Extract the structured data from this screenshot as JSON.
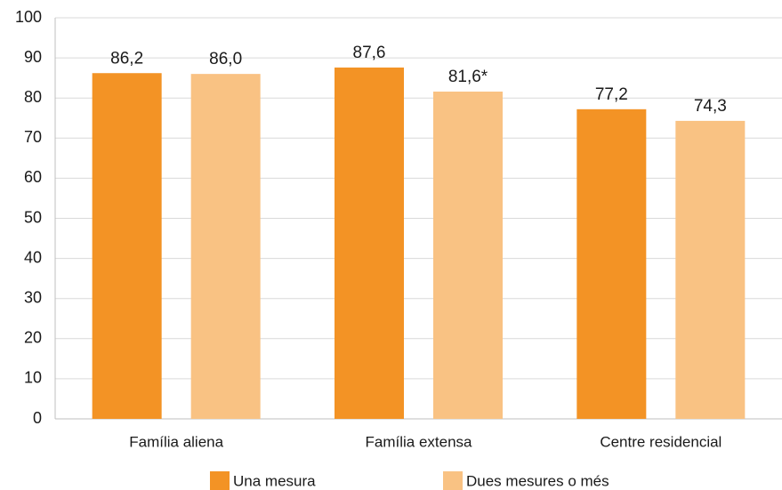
{
  "chart_data": {
    "type": "bar",
    "categories": [
      "Família aliena",
      "Família extensa",
      "Centre residencial"
    ],
    "series": [
      {
        "name": "Una mesura",
        "color": "#f39325",
        "values": [
          86.2,
          87.6,
          77.2
        ],
        "value_labels": [
          "86,2",
          "87,6",
          "77,2"
        ]
      },
      {
        "name": "Dues mesures o més",
        "color": "#f9c283",
        "values": [
          86.0,
          81.6,
          74.3
        ],
        "value_labels": [
          "86,0",
          "81,6*",
          "74,3"
        ]
      }
    ],
    "ylim": [
      0,
      100
    ],
    "yticks": [
      0,
      10,
      20,
      30,
      40,
      50,
      60,
      70,
      80,
      90,
      100
    ],
    "grid": true
  }
}
